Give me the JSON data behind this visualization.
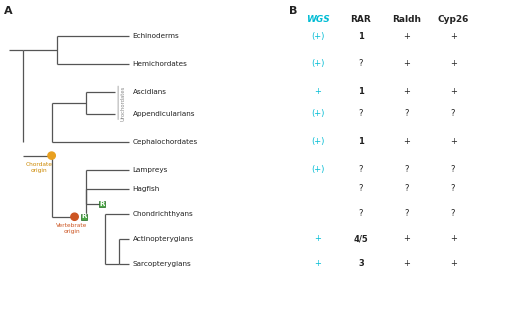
{
  "bg_color": "#ffffff",
  "tree_color": "#555555",
  "taxa": [
    "Echinoderms",
    "Hemichordates",
    "Ascidians",
    "Appendicularians",
    "Cephalochordates",
    "Lampreys",
    "Hagfish",
    "Chondrichthyans",
    "Actinopterygians",
    "Sarcopterygians"
  ],
  "wgs_values": [
    "(+)",
    "(+)",
    "+",
    "(+)",
    "(+)",
    "(+)",
    "",
    "",
    "+",
    "+"
  ],
  "rar_values": [
    "1",
    "?",
    "1",
    "?",
    "1",
    "?",
    "?",
    "?",
    "4/5",
    "3"
  ],
  "raldh_values": [
    "+",
    "+",
    "+",
    "?",
    "+",
    "?",
    "?",
    "?",
    "+",
    "+"
  ],
  "cyp26_values": [
    "+",
    "+",
    "+",
    "?",
    "+",
    "?",
    "?",
    "?",
    "+",
    "+"
  ],
  "wgs_color": "#00bcd4",
  "rar_bold": [
    0,
    2,
    4,
    8,
    9
  ],
  "chordate_origin_color": "#e8a020",
  "vertebrate_origin_color": "#cc5522",
  "R_box_color": "#4aaa44",
  "R_text_color": "#ffffff",
  "chordate_label_color": "#cc8800",
  "vertebrate_label_color": "#cc5522",
  "urochordates_color": "#888888",
  "col_headers": [
    "WGS",
    "RAR",
    "Raldh",
    "Cyp26"
  ]
}
